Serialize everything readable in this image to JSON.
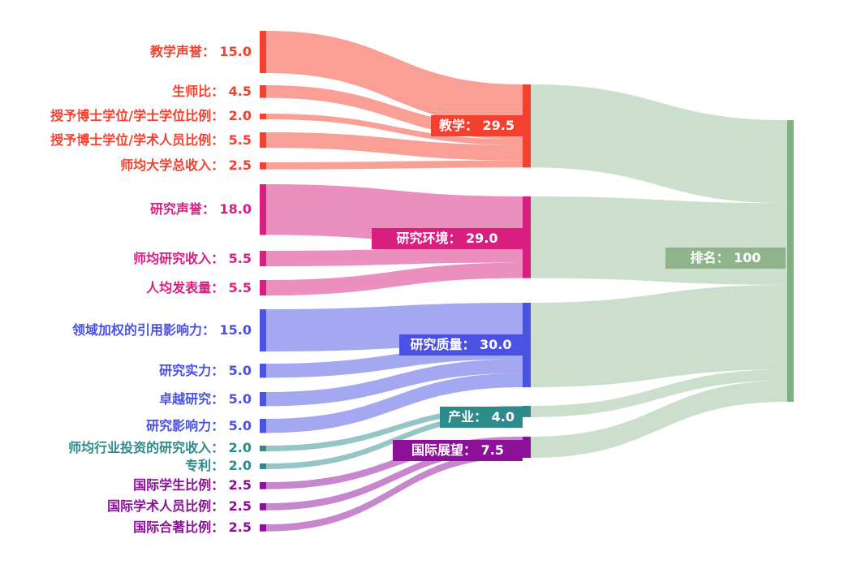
{
  "chart_data": {
    "type": "sankey",
    "title": "",
    "background": "#ffffff",
    "columns": [
      "indicators",
      "pillars",
      "rank"
    ],
    "left_nodes": [
      {
        "id": "teaching-reputation",
        "label": "教学声誉",
        "value": 15.0,
        "display": "15.0",
        "group": "teaching",
        "text": "教学声誉： 15.0"
      },
      {
        "id": "student-staff-ratio",
        "label": "生师比",
        "value": 4.5,
        "display": "4.5",
        "group": "teaching",
        "text": "生师比： 4.5"
      },
      {
        "id": "doctorate-bachelor-ratio",
        "label": "授予博士学位/学士学位比例",
        "value": 2.0,
        "display": "2.0",
        "group": "teaching",
        "text": "授予博士学位/学士学位比例： 2.0"
      },
      {
        "id": "doctorate-staff-ratio",
        "label": "授予博士学位/学术人员比例",
        "value": 5.5,
        "display": "5.5",
        "group": "teaching",
        "text": "授予博士学位/学术人员比例： 5.5"
      },
      {
        "id": "institutional-income",
        "label": "师均大学总收入",
        "value": 2.5,
        "display": "2.5",
        "group": "teaching",
        "text": "师均大学总收入： 2.5"
      },
      {
        "id": "research-reputation",
        "label": "研究声誉",
        "value": 18.0,
        "display": "18.0",
        "group": "research-environment",
        "text": "研究声誉： 18.0"
      },
      {
        "id": "research-income",
        "label": "师均研究收入",
        "value": 5.5,
        "display": "5.5",
        "group": "research-environment",
        "text": "师均研究收入： 5.5"
      },
      {
        "id": "publications-per-capita",
        "label": "人均发表量",
        "value": 5.5,
        "display": "5.5",
        "group": "research-environment",
        "text": "人均发表量： 5.5"
      },
      {
        "id": "field-weighted-citation-impact",
        "label": "领域加权的引用影响力",
        "value": 15.0,
        "display": "15.0",
        "group": "research-quality",
        "text": "领域加权的引用影响力： 15.0"
      },
      {
        "id": "research-strength",
        "label": "研究实力",
        "value": 5.0,
        "display": "5.0",
        "group": "research-quality",
        "text": "研究实力： 5.0"
      },
      {
        "id": "research-excellence",
        "label": "卓越研究",
        "value": 5.0,
        "display": "5.0",
        "group": "research-quality",
        "text": "卓越研究： 5.0"
      },
      {
        "id": "research-influence",
        "label": "研究影响力",
        "value": 5.0,
        "display": "5.0",
        "group": "research-quality",
        "text": "研究影响力： 5.0"
      },
      {
        "id": "industry-research-income",
        "label": "师均行业投资的研究收入",
        "value": 2.0,
        "display": "2.0",
        "group": "industry",
        "text": "师均行业投资的研究收入： 2.0"
      },
      {
        "id": "patents",
        "label": "专利",
        "value": 2.0,
        "display": "2.0",
        "group": "industry",
        "text": "专利： 2.0"
      },
      {
        "id": "intl-students",
        "label": "国际学生比例",
        "value": 2.5,
        "display": "2.5",
        "group": "international-outlook",
        "text": "国际学生比例： 2.5"
      },
      {
        "id": "intl-staff",
        "label": "国际学术人员比例",
        "value": 2.5,
        "display": "2.5",
        "group": "international-outlook",
        "text": "国际学术人员比例： 2.5"
      },
      {
        "id": "intl-coauthorship",
        "label": "国际合著比例",
        "value": 2.5,
        "display": "2.5",
        "group": "international-outlook",
        "text": "国际合著比例： 2.5"
      }
    ],
    "middle_nodes": [
      {
        "id": "teaching",
        "label": "教学",
        "value": 29.5,
        "display": "29.5",
        "color": "#F4402E",
        "text": "教学： 29.5"
      },
      {
        "id": "research-environment",
        "label": "研究环境",
        "value": 29.0,
        "display": "29.0",
        "color": "#D81F80",
        "text": "研究环境： 29.0"
      },
      {
        "id": "research-quality",
        "label": "研究质量",
        "value": 30.0,
        "display": "30.0",
        "color": "#4A51E3",
        "text": "研究质量： 30.0"
      },
      {
        "id": "industry",
        "label": "产业",
        "value": 4.0,
        "display": "4.0",
        "color": "#2E8B8C",
        "text": "产业： 4.0"
      },
      {
        "id": "international-outlook",
        "label": "国际展望",
        "value": 7.5,
        "display": "7.5",
        "color": "#8D1099",
        "text": "国际展望： 7.5"
      }
    ],
    "right_node": {
      "id": "rank",
      "label": "排名",
      "value": 100,
      "display": "100",
      "color": "#7FB080",
      "label_bg": "#8FB38B",
      "text": "排名： 100"
    },
    "links": [
      {
        "source": "教学声誉",
        "target": "教学",
        "value": 15.0
      },
      {
        "source": "生师比",
        "target": "教学",
        "value": 4.5
      },
      {
        "source": "授予博士学位/学士学位比例",
        "target": "教学",
        "value": 2.0
      },
      {
        "source": "授予博士学位/学术人员比例",
        "target": "教学",
        "value": 5.5
      },
      {
        "source": "师均大学总收入",
        "target": "教学",
        "value": 2.5
      },
      {
        "source": "研究声誉",
        "target": "研究环境",
        "value": 18.0
      },
      {
        "source": "师均研究收入",
        "target": "研究环境",
        "value": 5.5
      },
      {
        "source": "人均发表量",
        "target": "研究环境",
        "value": 5.5
      },
      {
        "source": "领域加权的引用影响力",
        "target": "研究质量",
        "value": 15.0
      },
      {
        "source": "研究实力",
        "target": "研究质量",
        "value": 5.0
      },
      {
        "source": "卓越研究",
        "target": "研究质量",
        "value": 5.0
      },
      {
        "source": "研究影响力",
        "target": "研究质量",
        "value": 5.0
      },
      {
        "source": "师均行业投资的研究收入",
        "target": "产业",
        "value": 2.0
      },
      {
        "source": "专利",
        "target": "产业",
        "value": 2.0
      },
      {
        "source": "国际学生比例",
        "target": "国际展望",
        "value": 2.5
      },
      {
        "source": "国际学术人员比例",
        "target": "国际展望",
        "value": 2.5
      },
      {
        "source": "国际合著比例",
        "target": "国际展望",
        "value": 2.5
      },
      {
        "source": "教学",
        "target": "排名",
        "value": 29.5
      },
      {
        "source": "研究环境",
        "target": "排名",
        "value": 29.0
      },
      {
        "source": "研究质量",
        "target": "排名",
        "value": 30.0
      },
      {
        "source": "产业",
        "target": "排名",
        "value": 4.0
      },
      {
        "source": "国际展望",
        "target": "排名",
        "value": 7.5
      }
    ]
  }
}
